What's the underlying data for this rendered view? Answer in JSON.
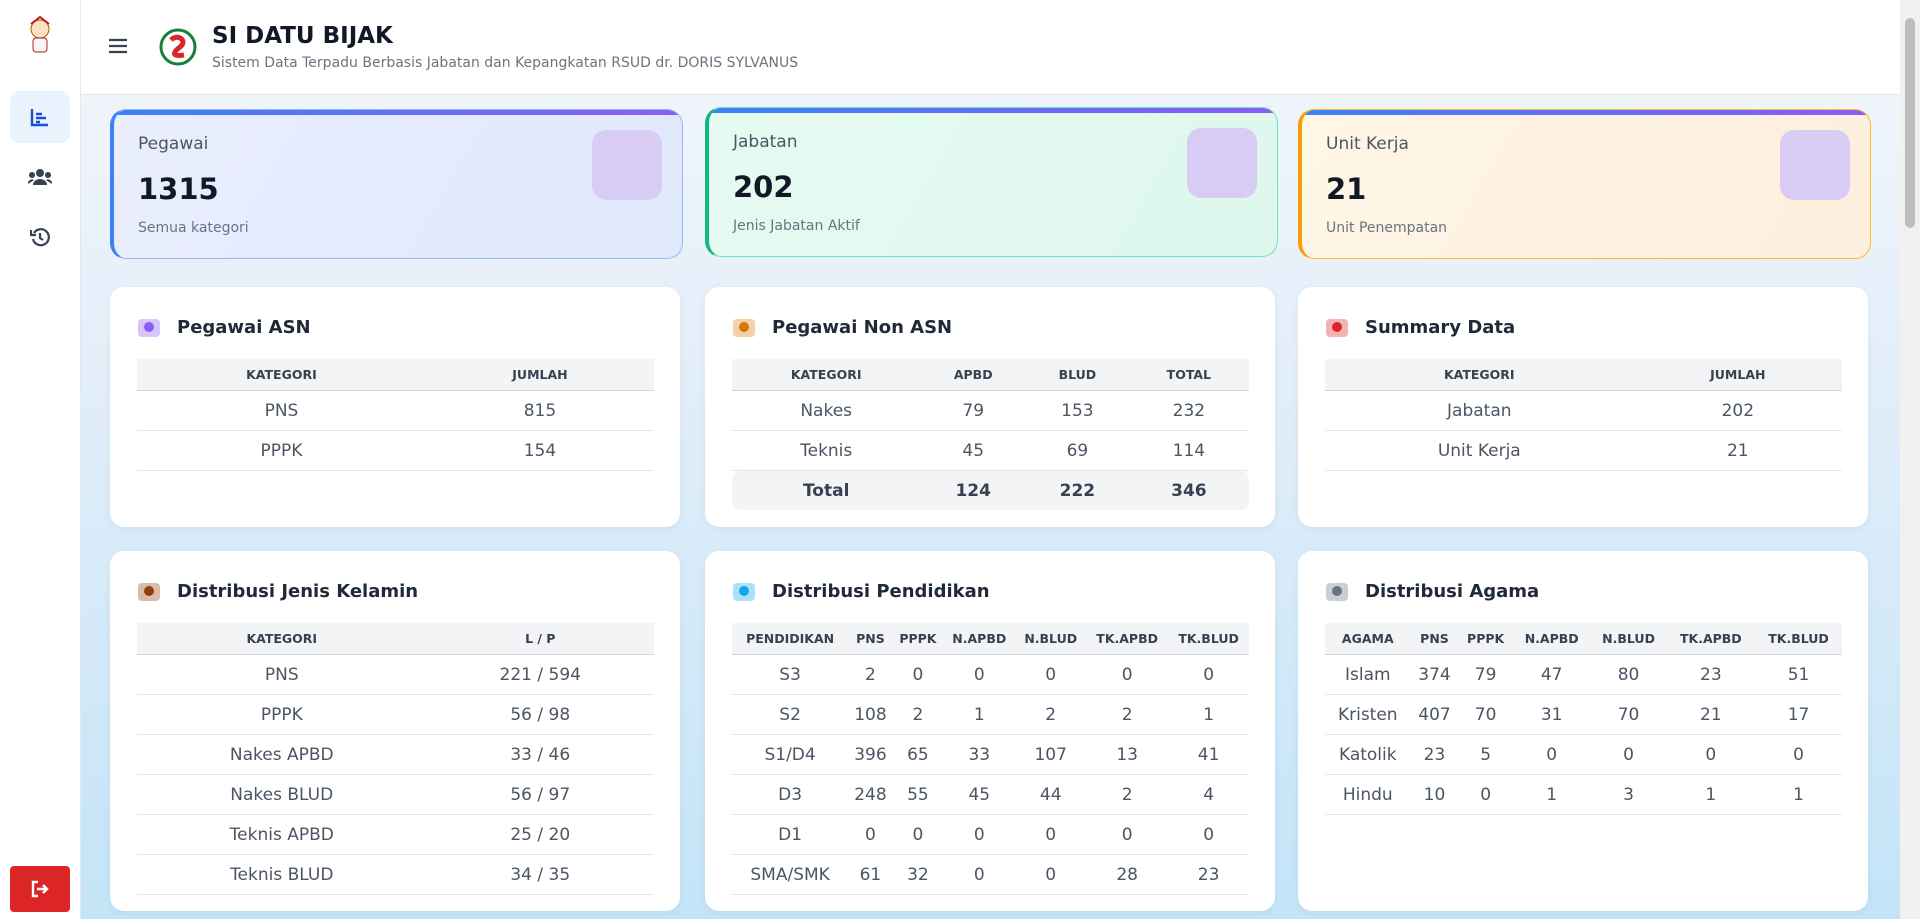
{
  "header": {
    "title": "SI DATU BIJAK",
    "subtitle": "Sistem Data Terpadu Berbasis Jabatan dan Kepangkatan RSUD dr. DORIS SYLVANUS"
  },
  "stats": [
    {
      "label": "Pegawai",
      "value": 1315,
      "note": "Semua kategori"
    },
    {
      "label": "Jabatan",
      "value": 202,
      "note": "Jenis Jabatan Aktif"
    },
    {
      "label": "Unit Kerja",
      "value": 21,
      "note": "Unit Penempatan"
    }
  ],
  "tables": [
    {
      "title": "Pegawai ASN",
      "columns": [
        "KATEGORI",
        "JUMLAH"
      ],
      "rows": [
        [
          "PNS",
          815
        ],
        [
          "PPPK",
          154
        ]
      ]
    },
    {
      "title": "Pegawai Non ASN",
      "columns": [
        "KATEGORI",
        "APBD",
        "BLUD",
        "TOTAL"
      ],
      "rows": [
        [
          "Nakes",
          79,
          153,
          232
        ],
        [
          "Teknis",
          45,
          69,
          114
        ]
      ],
      "total": [
        "Total",
        124,
        222,
        346
      ]
    },
    {
      "title": "Summary Data",
      "columns": [
        "KATEGORI",
        "JUMLAH"
      ],
      "rows": [
        [
          "Jabatan",
          202
        ],
        [
          "Unit Kerja",
          21
        ]
      ]
    },
    {
      "title": "Distribusi Jenis Kelamin",
      "columns": [
        "KATEGORI",
        "L / P"
      ],
      "rows": [
        [
          "PNS",
          "221 / 594"
        ],
        [
          "PPPK",
          "56 / 98"
        ],
        [
          "Nakes APBD",
          "33 / 46"
        ],
        [
          "Nakes BLUD",
          "56 / 97"
        ],
        [
          "Teknis APBD",
          "25 / 20"
        ],
        [
          "Teknis BLUD",
          "34 / 35"
        ]
      ]
    },
    {
      "title": "Distribusi Pendidikan",
      "columns": [
        "PENDIDIKAN",
        "PNS",
        "PPPK",
        "N.APBD",
        "N.BLUD",
        "TK.APBD",
        "TK.BLUD"
      ],
      "rows": [
        [
          "S3",
          2,
          0,
          0,
          0,
          0,
          0
        ],
        [
          "S2",
          108,
          2,
          1,
          2,
          2,
          1
        ],
        [
          "S1/D4",
          396,
          65,
          33,
          107,
          13,
          41
        ],
        [
          "D3",
          248,
          55,
          45,
          44,
          2,
          4
        ],
        [
          "D1",
          0,
          0,
          0,
          0,
          0,
          0
        ],
        [
          "SMA/SMK",
          61,
          32,
          0,
          0,
          28,
          23
        ]
      ]
    },
    {
      "title": "Distribusi Agama",
      "columns": [
        "AGAMA",
        "PNS",
        "PPPK",
        "N.APBD",
        "N.BLUD",
        "TK.APBD",
        "TK.BLUD"
      ],
      "rows": [
        [
          "Islam",
          374,
          79,
          47,
          80,
          23,
          51
        ],
        [
          "Kristen",
          407,
          70,
          31,
          70,
          21,
          17
        ],
        [
          "Katolik",
          23,
          5,
          0,
          0,
          0,
          0
        ],
        [
          "Hindu",
          10,
          0,
          1,
          3,
          1,
          1
        ]
      ]
    }
  ]
}
